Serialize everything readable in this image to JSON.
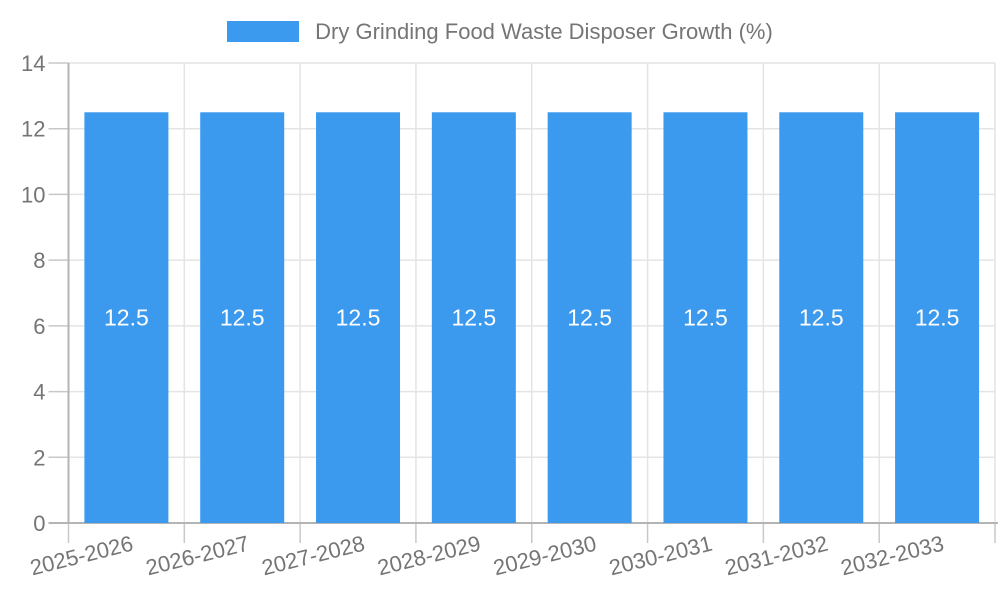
{
  "legend": {
    "items": [
      {
        "label": "Dry Grinding Food Waste Disposer Growth (%)",
        "color": "#3B99EE"
      }
    ]
  },
  "chart_data": {
    "type": "bar",
    "title": "Dry Grinding Food Waste Disposer Growth (%)",
    "categories": [
      "2025-2026",
      "2026-2027",
      "2027-2028",
      "2028-2029",
      "2029-2030",
      "2030-2031",
      "2031-2032",
      "2032-2033"
    ],
    "series": [
      {
        "name": "Dry Grinding Food Waste Disposer Growth (%)",
        "values": [
          12.5,
          12.5,
          12.5,
          12.5,
          12.5,
          12.5,
          12.5,
          12.5
        ]
      }
    ],
    "bar_value_labels": [
      "12.5",
      "12.5",
      "12.5",
      "12.5",
      "12.5",
      "12.5",
      "12.5",
      "12.5"
    ],
    "xlabel": "",
    "ylabel": "",
    "ylim": [
      0,
      14
    ],
    "yticks": [
      0,
      2,
      4,
      6,
      8,
      10,
      12,
      14
    ],
    "ytick_labels": [
      "0",
      "2",
      "4",
      "6",
      "8",
      "10",
      "12",
      "14"
    ],
    "grid": true,
    "legend_position": "top",
    "x_tick_rotation_deg": -14,
    "colors": {
      "bar": "#3B99EE",
      "grid_line": "#E4E4E4",
      "axis_line": "#B4B4B4",
      "tick_mark": "#C8C8C8",
      "tick_text": "#757575",
      "legend_text": "#757575",
      "bar_label_text": "#FFFFFF",
      "background": "#FFFFFF"
    }
  }
}
